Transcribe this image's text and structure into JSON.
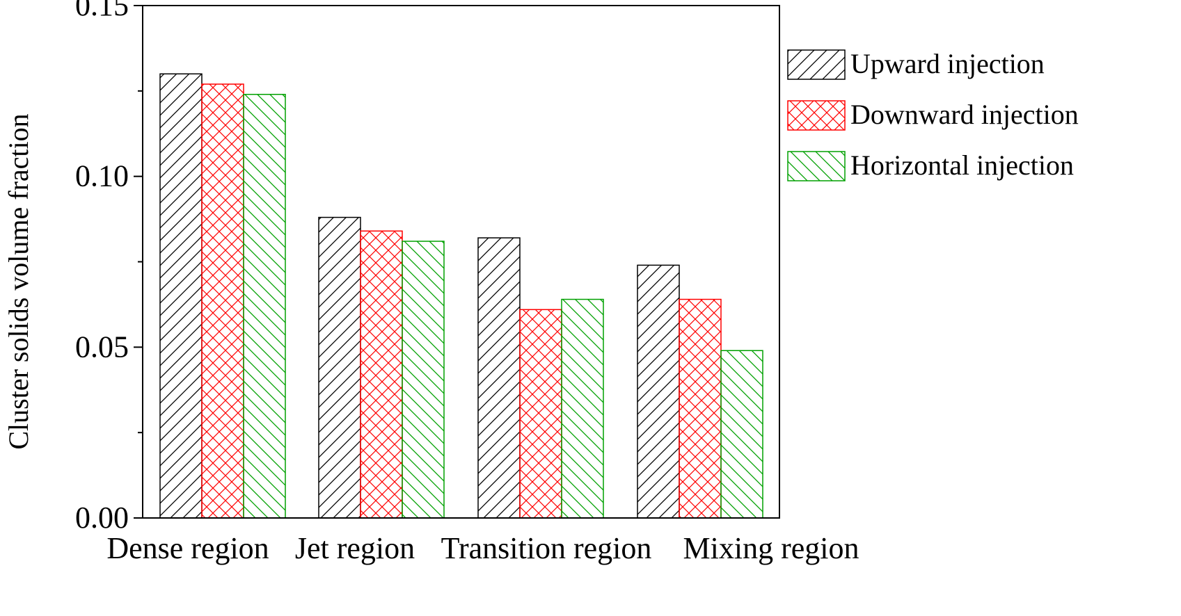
{
  "chart_data": {
    "type": "bar",
    "title": "",
    "xlabel": "",
    "ylabel": "Cluster solids volume fraction",
    "categories": [
      "Dense region",
      "Jet region",
      "Transition region",
      "Mixing region"
    ],
    "ylim": [
      0,
      0.15
    ],
    "yticks": [
      "0.00",
      "0.05",
      "0.10",
      "0.15"
    ],
    "grid": false,
    "legend_position": "right",
    "series": [
      {
        "name": "Upward injection",
        "color": "#000000",
        "pattern": "forward-diagonal",
        "values": [
          0.13,
          0.088,
          0.082,
          0.074
        ]
      },
      {
        "name": "Downward injection",
        "color": "#ff0000",
        "pattern": "crosshatch",
        "values": [
          0.127,
          0.084,
          0.061,
          0.064
        ]
      },
      {
        "name": "Horizontal injection",
        "color": "#00a000",
        "pattern": "back-diagonal",
        "values": [
          0.124,
          0.081,
          0.064,
          0.049
        ]
      }
    ]
  }
}
